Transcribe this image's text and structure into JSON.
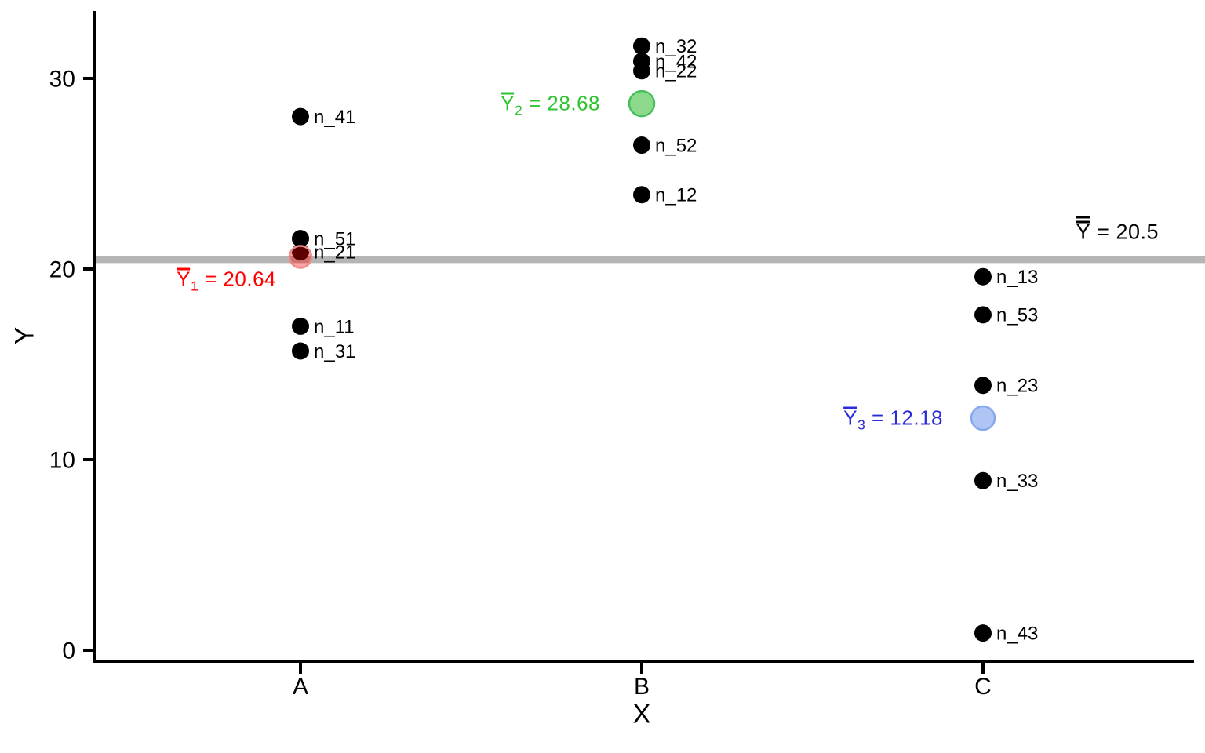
{
  "chart_data": {
    "type": "scatter",
    "title": "",
    "xlabel": "X",
    "ylabel": "Y",
    "x_categories": [
      "A",
      "B",
      "C"
    ],
    "y_ticks": [
      0,
      10,
      20,
      30
    ],
    "ylim": [
      0,
      33.5
    ],
    "grid": false,
    "point_color": "#000000",
    "grand_mean": {
      "value": 20.5,
      "label_symbol": "Y",
      "label_eq": "= 20.5",
      "text_color": "#000000",
      "line_color": "#b5b5b5"
    },
    "groups": [
      {
        "category": "A",
        "mean": {
          "value": 20.64,
          "label_symbol": "Y",
          "label_sub": "1",
          "label_eq": "= 20.64",
          "text_color": "#ff0000",
          "fill": "rgba(255,0,0,0.36)",
          "stroke": "#ee8c8c"
        },
        "points": [
          {
            "label": "n_41",
            "value": 28.0
          },
          {
            "label": "n_51",
            "value": 21.6
          },
          {
            "label": "n_21",
            "value": 20.9
          },
          {
            "label": "n_11",
            "value": 17.0
          },
          {
            "label": "n_31",
            "value": 15.7
          }
        ]
      },
      {
        "category": "B",
        "mean": {
          "value": 28.68,
          "label_symbol": "Y",
          "label_sub": "2",
          "label_eq": "= 28.68",
          "text_color": "#2fc42f",
          "fill": "rgba(0,170,0,0.45)",
          "stroke": "#46c05c"
        },
        "points": [
          {
            "label": "n_32",
            "value": 31.7
          },
          {
            "label": "n_42",
            "value": 30.9
          },
          {
            "label": "n_22",
            "value": 30.4
          },
          {
            "label": "n_52",
            "value": 26.5
          },
          {
            "label": "n_12",
            "value": 23.9
          }
        ]
      },
      {
        "category": "C",
        "mean": {
          "value": 12.18,
          "label_symbol": "Y",
          "label_sub": "3",
          "label_eq": "= 12.18",
          "text_color": "#2b2bd9",
          "fill": "rgba(60,110,230,0.4)",
          "stroke": "#86a8ec"
        },
        "points": [
          {
            "label": "n_13",
            "value": 19.6
          },
          {
            "label": "n_53",
            "value": 17.6
          },
          {
            "label": "n_23",
            "value": 13.9
          },
          {
            "label": "n_33",
            "value": 8.9
          },
          {
            "label": "n_43",
            "value": 0.9
          }
        ]
      }
    ]
  }
}
